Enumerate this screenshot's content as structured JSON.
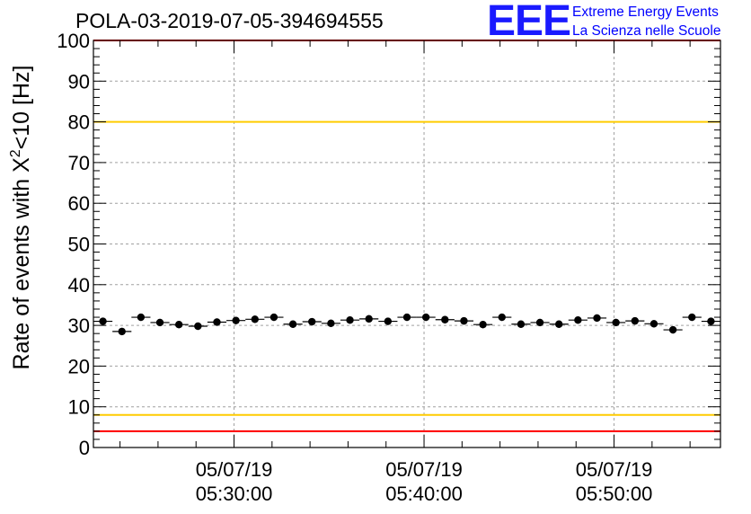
{
  "header": {
    "run_title": "POLA-03-2019-07-05-394694555",
    "logo_letters": "EEE",
    "logo_line1": "Extreme Energy Events",
    "logo_line2": "La Scienza nelle Scuole"
  },
  "colors": {
    "limit_red": "#ff0000",
    "limit_yellow": "#ffcc00",
    "logo_blue": "#0000ff",
    "points": "#000000",
    "grid": "#a0a0a0"
  },
  "chart_data": {
    "type": "scatter",
    "title": "POLA-03-2019-07-05-394694555",
    "xlabel": "",
    "ylabel_prefix": "Rate of events with X",
    "ylabel_sup": "2",
    "ylabel_suffix": "<10 [Hz]",
    "ylim": [
      0,
      100
    ],
    "xlim_minutes_after_0500": [
      22.6,
      55.6
    ],
    "y_ticks": [
      "0",
      "10",
      "20",
      "30",
      "40",
      "50",
      "60",
      "70",
      "80",
      "90",
      "100"
    ],
    "x_ticks": [
      {
        "minute": 30,
        "date": "05/07/19",
        "time": "05:30:00"
      },
      {
        "minute": 40,
        "date": "05/07/19",
        "time": "05:40:00"
      },
      {
        "minute": 50,
        "date": "05/07/19",
        "time": "05:50:00"
      }
    ],
    "grid": true,
    "bin_width_minutes": 1,
    "reference_lines": [
      {
        "y": 4,
        "color": "#ff0000"
      },
      {
        "y": 8,
        "color": "#ffcc00"
      },
      {
        "y": 80,
        "color": "#ffcc00"
      },
      {
        "y": 100,
        "color": "#ff0000"
      }
    ],
    "series": [
      {
        "x": [
          23.1,
          24.1,
          25.1,
          26.1,
          27.1,
          28.1,
          29.1,
          30.1,
          31.1,
          32.1,
          33.1,
          34.1,
          35.1,
          36.1,
          37.1,
          38.1,
          39.1,
          40.1,
          41.1,
          42.1,
          43.1,
          44.1,
          45.1,
          46.1,
          47.1,
          48.1,
          49.1,
          50.1,
          51.1,
          52.1,
          53.1,
          54.1,
          55.1
        ],
        "y": [
          31.0,
          28.5,
          32.0,
          30.7,
          30.2,
          29.8,
          30.8,
          31.2,
          31.5,
          32.0,
          30.3,
          30.9,
          30.5,
          31.3,
          31.6,
          31.0,
          32.0,
          32.0,
          31.4,
          31.1,
          30.2,
          32.0,
          30.3,
          30.7,
          30.3,
          31.3,
          31.8,
          30.7,
          31.1,
          30.4,
          28.9,
          32.0,
          31.0
        ],
        "y_err": [
          0.9,
          0.9,
          0.9,
          0.9,
          0.9,
          0.9,
          0.9,
          0.9,
          0.9,
          0.9,
          0.9,
          0.9,
          0.9,
          0.9,
          0.9,
          0.9,
          0.9,
          0.9,
          0.9,
          0.9,
          0.9,
          0.9,
          0.9,
          0.9,
          0.9,
          0.9,
          0.9,
          0.9,
          0.9,
          0.9,
          0.9,
          0.9,
          0.9
        ]
      }
    ]
  }
}
